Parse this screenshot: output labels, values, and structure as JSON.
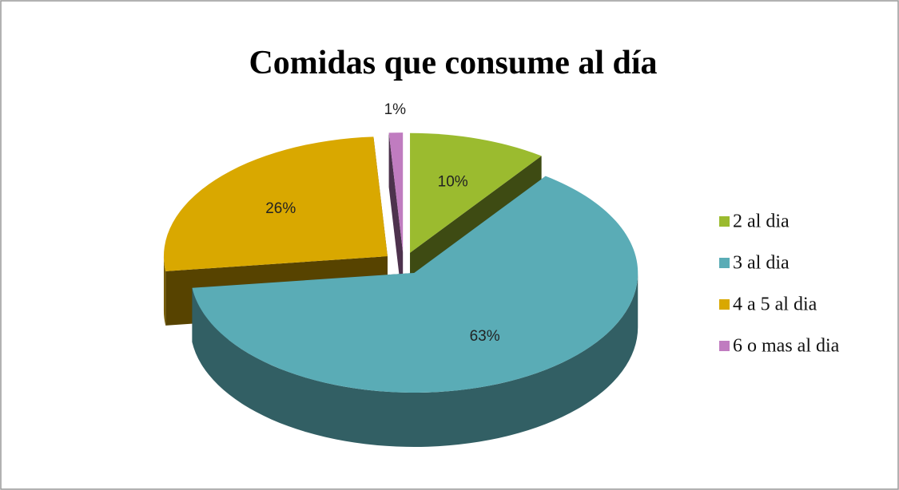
{
  "chart_data": {
    "type": "pie",
    "title": "Comidas que consume al día",
    "categories": [
      "2 al dia",
      "3 al dia",
      "4 a 5 al dia",
      "6 o mas al dia"
    ],
    "values": [
      10,
      63,
      26,
      1
    ],
    "value_labels": [
      "10%",
      "63%",
      "26%",
      "1%"
    ],
    "colors": [
      "#9bbb2f",
      "#5aacb6",
      "#d9a800",
      "#c07cc0"
    ],
    "legend": "right"
  }
}
